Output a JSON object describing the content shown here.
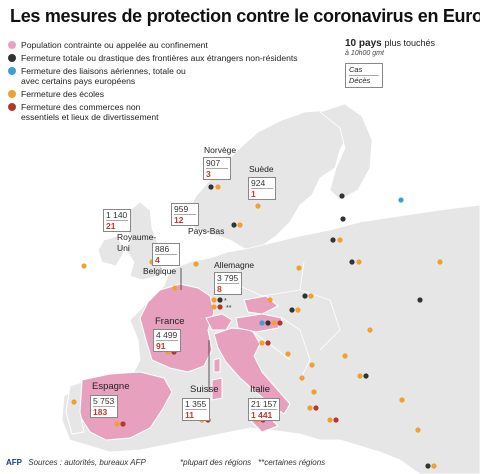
{
  "title": "Les mesures de protection contre le coronavirus en Europe",
  "legend": [
    {
      "text": "Population contrainte ou appelée au confinement",
      "color": "#e8a0bf"
    },
    {
      "text": "Fermeture totale ou drastique des frontières aux étrangers non-résidents",
      "color": "#333333"
    },
    {
      "text": "Fermeture des liaisons aériennes, totale ou avec certains pays européens",
      "color": "#3aa0d8"
    },
    {
      "text": "Fermeture des écoles",
      "color": "#f0a030"
    },
    {
      "text": "Fermeture des commerces non essentiels et lieux de divertissement",
      "color": "#b03a2e"
    }
  ],
  "top_info": {
    "heading": "10 pays",
    "heading_rest": "plus touchés",
    "time": "à 10h00 gmt",
    "key_cases": "Cas",
    "key_deaths": "Décès"
  },
  "countries": {
    "norvege": {
      "name": "Norvège",
      "cases": "907",
      "deaths": "3"
    },
    "suede": {
      "name": "Suède",
      "cases": "924",
      "deaths": "1"
    },
    "ru": {
      "name": "Royaume-Uni",
      "cases": "1 140",
      "deaths": "21"
    },
    "paysbas": {
      "name": "Pays-Bas",
      "cases": "959",
      "deaths": "12"
    },
    "belgique": {
      "name": "Belgique",
      "cases": "886",
      "deaths": "4"
    },
    "allemagne": {
      "name": "Allemagne",
      "cases": "3 795",
      "deaths": "8"
    },
    "france": {
      "name": "France",
      "cases": "4 499",
      "deaths": "91"
    },
    "espagne": {
      "name": "Espagne",
      "cases": "5 753",
      "deaths": "183"
    },
    "suisse": {
      "name": "Suisse",
      "cases": "1 355",
      "deaths": "11"
    },
    "italie": {
      "name": "Italie",
      "cases": "21 157",
      "deaths": "1 441"
    }
  },
  "footer": {
    "logo": "AFP",
    "sources": "Sources : autorités, bureaux AFP",
    "note1": "*plupart des régions",
    "note2": "**certaines régions"
  },
  "colors": {
    "sea": "#ffffff",
    "land": "#e6e6e6",
    "confined": "#e8a0bf",
    "border": "#ffffff",
    "closure_border": "#333333",
    "closure_air": "#3aa0d8",
    "closure_school": "#f0a030",
    "closure_shop": "#b03a2e"
  }
}
